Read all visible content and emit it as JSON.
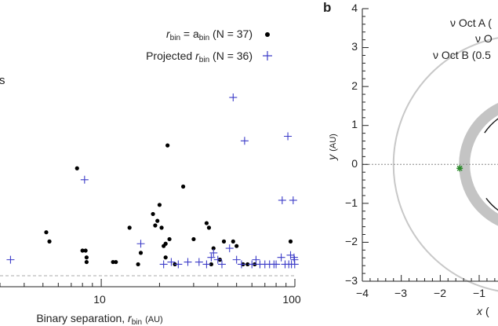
{
  "chart_data": [
    {
      "type": "scatter",
      "panel_label": "",
      "xscale": "log",
      "xlim": [
        3,
        100
      ],
      "ylim": [
        0,
        1
      ],
      "xticks": [
        10,
        100
      ],
      "xtick_labels": [
        "10",
        "100"
      ],
      "xlabel_prefix": "Binary separation, ",
      "xlabel_var": "r",
      "xlabel_sub": "bin",
      "xlabel_unit": "(AU)",
      "ylabel": "",
      "partial_side_label": "s",
      "reference_line": "dashed",
      "series": [
        {
          "name": "rbin = abin (N = 37)",
          "legend_main": "r",
          "legend_sub1": "bin",
          "legend_mid": " = a",
          "legend_sub2": "bin",
          "legend_tail": " (N = 37)",
          "marker": "dot",
          "color": "#000000",
          "points": [
            [
              7.5,
              0.47
            ],
            [
              5.2,
              0.19
            ],
            [
              5.4,
              0.15
            ],
            [
              8.0,
              0.11
            ],
            [
              8.3,
              0.11
            ],
            [
              8.4,
              0.08
            ],
            [
              8.4,
              0.06
            ],
            [
              11.5,
              0.06
            ],
            [
              11.9,
              0.06
            ],
            [
              14,
              0.21
            ],
            [
              16,
              0.1
            ],
            [
              15.5,
              0.05
            ],
            [
              18.5,
              0.27
            ],
            [
              19,
              0.22
            ],
            [
              19.5,
              0.24
            ],
            [
              20,
              0.31
            ],
            [
              20.5,
              0.21
            ],
            [
              21,
              0.13
            ],
            [
              21.5,
              0.14
            ],
            [
              22,
              0.57
            ],
            [
              22.5,
              0.16
            ],
            [
              21.5,
              0.08
            ],
            [
              24,
              0.05
            ],
            [
              26.5,
              0.39
            ],
            [
              30,
              0.16
            ],
            [
              35,
              0.23
            ],
            [
              36,
              0.21
            ],
            [
              38,
              0.12
            ],
            [
              41,
              0.07
            ],
            [
              43,
              0.15
            ],
            [
              48,
              0.15
            ],
            [
              50,
              0.13
            ],
            [
              37,
              0.05
            ],
            [
              54,
              0.05
            ],
            [
              57,
              0.05
            ],
            [
              62,
              0.05
            ],
            [
              95,
              0.15
            ]
          ]
        },
        {
          "name": "Projected rbin (N = 36)",
          "legend_prefix": "Projected ",
          "legend_main": "r",
          "legend_sub": "bin",
          "legend_tail": " (N = 36)",
          "marker": "plus",
          "color": "#3c3cc8",
          "points": [
            [
              3.4,
              0.07
            ],
            [
              8.2,
              0.42
            ],
            [
              16,
              0.14
            ],
            [
              21,
              0.05
            ],
            [
              23,
              0.06
            ],
            [
              25,
              0.05
            ],
            [
              28,
              0.06
            ],
            [
              32,
              0.06
            ],
            [
              35,
              0.05
            ],
            [
              37,
              0.08
            ],
            [
              38,
              0.1
            ],
            [
              40,
              0.07
            ],
            [
              42,
              0.05
            ],
            [
              46,
              0.12
            ],
            [
              48,
              0.78
            ],
            [
              50,
              0.07
            ],
            [
              53,
              0.05
            ],
            [
              55,
              0.59
            ],
            [
              60,
              0.05
            ],
            [
              63,
              0.07
            ],
            [
              66,
              0.05
            ],
            [
              70,
              0.05
            ],
            [
              74,
              0.05
            ],
            [
              78,
              0.05
            ],
            [
              80,
              0.05
            ],
            [
              85,
              0.08
            ],
            [
              86,
              0.33
            ],
            [
              89,
              0.05
            ],
            [
              92,
              0.61
            ],
            [
              93,
              0.05
            ],
            [
              95,
              0.09
            ],
            [
              96,
              0.05
            ],
            [
              98,
              0.33
            ],
            [
              99,
              0.08
            ],
            [
              99.5,
              0.07
            ],
            [
              99.8,
              0.05
            ]
          ]
        }
      ]
    },
    {
      "type": "line",
      "panel_label": "b",
      "xlim": [
        -4,
        0.5
      ],
      "ylim": [
        -3,
        4
      ],
      "xticks": [
        -4,
        -3,
        -2,
        -1
      ],
      "xtick_labels": [
        "−4",
        "−3",
        "−2",
        "−1"
      ],
      "yticks": [
        -3,
        -2,
        -1,
        0,
        1,
        2,
        3,
        4
      ],
      "ytick_labels": [
        "−3",
        "−2",
        "−1",
        "0",
        "1",
        "2",
        "3",
        "4"
      ],
      "xlabel_var": "x",
      "xlabel_unit": "(",
      "ylabel_var": "y",
      "ylabel_unit": "(AU)",
      "legend": [
        "ν Oct A (",
        "ν O",
        "ν Oct B (0.5"
      ],
      "series": [
        {
          "name": "outer orbit",
          "cx": 0.1,
          "cy": 0,
          "r": 3.3,
          "color": "#c8c8c8"
        },
        {
          "name": "inner orbit band",
          "cx": 0.1,
          "cy": 0,
          "r": 1.6,
          "color": "#c0c0c0"
        },
        {
          "name": "inner orbit path",
          "cx": 0.1,
          "cy": 0,
          "r": 1.3,
          "color": "#111111"
        }
      ],
      "star_marker": {
        "x": -1.5,
        "y": -0.1,
        "color": "#2a8a2a"
      }
    }
  ]
}
